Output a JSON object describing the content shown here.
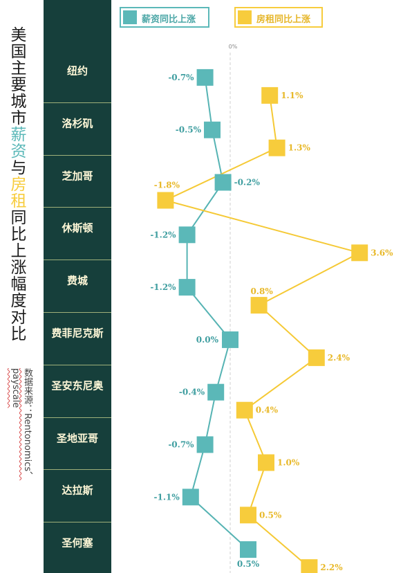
{
  "title": {
    "part1": "美国主要城市",
    "salary_word": "薪资",
    "part2": "与",
    "rent_word": "房租",
    "part3": "同比上涨幅度对比"
  },
  "source": "数据来源：Rentonomics、payscale",
  "colors": {
    "panel": "#163f3b",
    "salary": "#5bb8b8",
    "rent": "#f7cc3c",
    "city_text": "#fff8d8"
  },
  "chart_data": {
    "type": "line",
    "title": "美国主要城市薪资与房租同比上涨幅度对比",
    "zero_label": "0%",
    "categories": [
      "纽约",
      "洛杉矶",
      "芝加哥",
      "休斯顿",
      "费城",
      "费菲尼克斯",
      "圣安东尼奥",
      "圣地亚哥",
      "达拉斯",
      "圣何塞"
    ],
    "series": [
      {
        "name": "薪资同比上涨",
        "values": [
          -0.7,
          -0.5,
          -0.2,
          -1.2,
          -1.2,
          0.0,
          -0.4,
          -0.7,
          -1.1,
          0.5
        ],
        "labels": [
          "-0.7%",
          "-0.5%",
          "-0.2%",
          "-1.2%",
          "-1.2%",
          "0.0%",
          "-0.4%",
          "-0.7%",
          "-1.1%",
          "0.5%"
        ]
      },
      {
        "name": "房租同比上涨",
        "values": [
          1.1,
          1.3,
          -1.8,
          3.6,
          0.8,
          2.4,
          0.4,
          1.0,
          0.5,
          2.2
        ],
        "labels": [
          "1.1%",
          "1.3%",
          "-1.8%",
          "3.6%",
          "0.8%",
          "2.4%",
          "0.4%",
          "1.0%",
          "0.5%",
          "2.2%"
        ]
      }
    ]
  }
}
